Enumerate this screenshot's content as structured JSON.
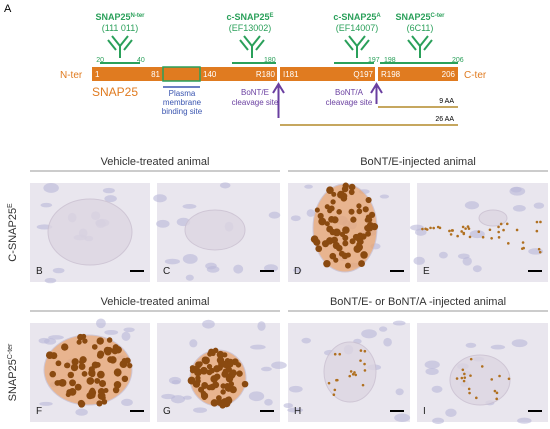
{
  "panel_a": {
    "letter": "A",
    "antibodies": [
      {
        "name": "SNAP25",
        "sup": "N-ter",
        "clone": "(111 011)",
        "range": [
          "20",
          "40"
        ]
      },
      {
        "name": "c-SNAP25",
        "sup": "E",
        "clone": "(EF13002)",
        "range": [
          "180"
        ]
      },
      {
        "name": "c-SNAP25",
        "sup": "A",
        "clone": "(EF14007)",
        "range": [
          "197"
        ]
      },
      {
        "name": "SNAP25",
        "sup": "C-ter",
        "clone": "(6C11)",
        "range": [
          "198",
          "206"
        ]
      }
    ],
    "protein": {
      "n_term": "N-ter",
      "c_term": "C-ter",
      "name": "SNAP25",
      "residues": [
        "1",
        "81",
        "140",
        "R180",
        "I181",
        "Q197",
        "R198",
        "206"
      ]
    },
    "annotations": {
      "membrane": "Plasma membrane binding site",
      "bont_e": "BoNT/E cleavage site",
      "bont_a": "BoNT/A cleavage site",
      "fragment_9": "9 AA",
      "fragment_26": "26 AA"
    }
  },
  "rows": [
    {
      "label": "C-SNAP25",
      "sup": "E",
      "headers": [
        "Vehicle-treated animal",
        "BoNT/E-injected animal"
      ],
      "panels": [
        "B",
        "C",
        "D",
        "E"
      ]
    },
    {
      "label": "SNAP25",
      "sup": "C-ter",
      "headers": [
        "Vehicle-treated animal",
        "BoNT/E- or BoNT/A -injected animal"
      ],
      "panels": [
        "F",
        "G",
        "H",
        "I"
      ]
    }
  ]
}
